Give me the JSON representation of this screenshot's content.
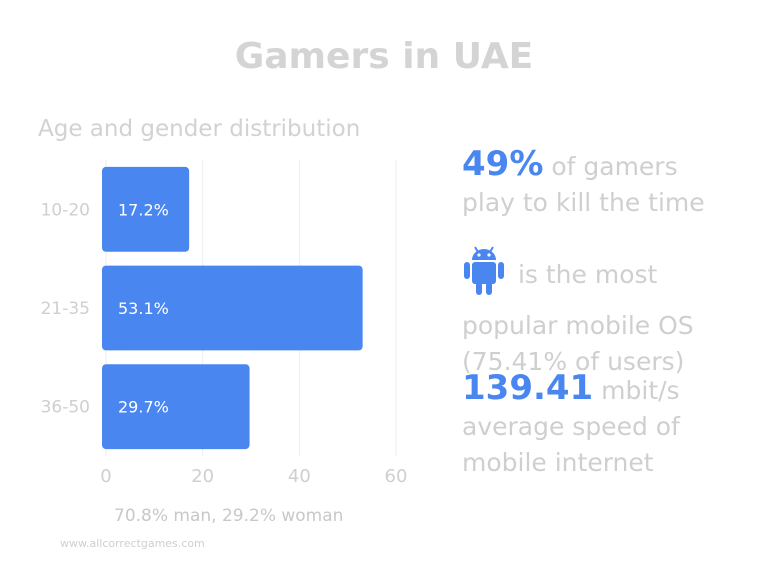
{
  "title": "Gamers in UAE",
  "subtitle": "Age and gender distribution",
  "chart_data": {
    "type": "bar",
    "orientation": "horizontal",
    "categories": [
      "10-20",
      "21-35",
      "36-50"
    ],
    "values": [
      17.2,
      53.1,
      29.7
    ],
    "value_labels": [
      "17.2%",
      "53.1%",
      "29.7%"
    ],
    "xlim": [
      0,
      60
    ],
    "xticks": [
      0,
      20,
      40,
      60
    ],
    "grid": true,
    "bar_color": "#4a86f0"
  },
  "footer": "70.8% man, 29.2% woman",
  "website": "www.allcorrectgames.com",
  "stats": {
    "s1_big": "49%",
    "s1_line1": "of gamers",
    "s1_line2": "play to kill the time",
    "s2_icon": "android-icon",
    "s2_line1": "is the most",
    "s2_line2": "popular mobile OS",
    "s2_line3": "(75.41% of users)",
    "s3_big": "139.41",
    "s3_unit": "mbit/s",
    "s3_line2": "average speed of",
    "s3_line3": "mobile internet"
  },
  "colors": {
    "accent": "#4a86f0",
    "muted_text": "#cfcfcf"
  }
}
